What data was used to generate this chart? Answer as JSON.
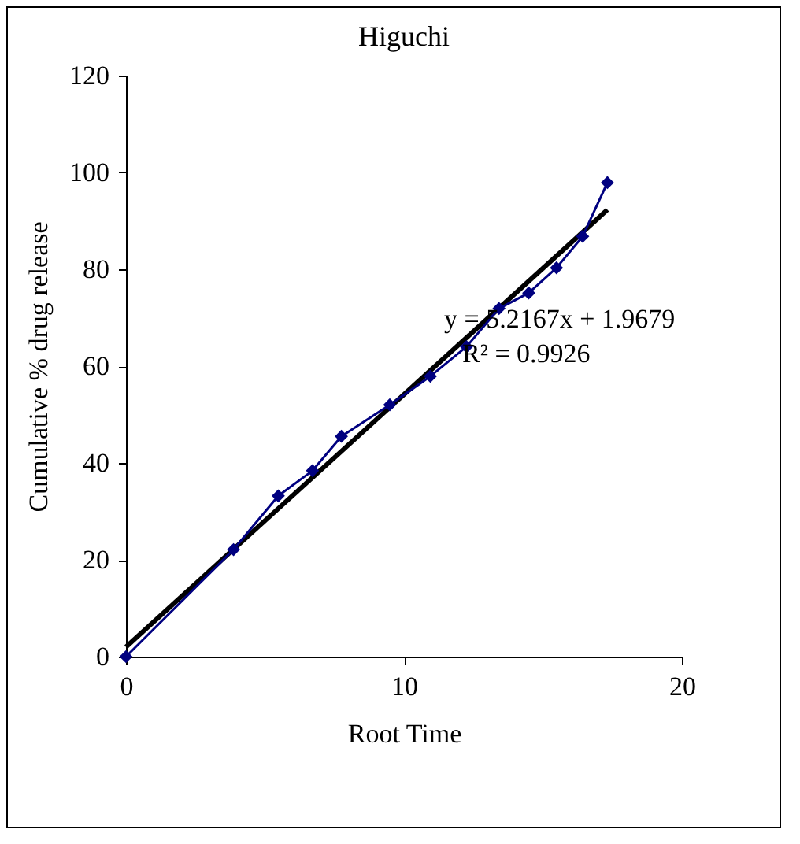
{
  "chart_data": {
    "type": "line",
    "title": "Higuchi",
    "xlabel": "Root Time",
    "ylabel": "Cumulative % drug release",
    "xlim": [
      0,
      20
    ],
    "xticks": [
      0,
      10,
      20
    ],
    "ylim": [
      0,
      120
    ],
    "yticks": [
      0,
      20,
      40,
      60,
      80,
      100,
      120
    ],
    "grid": false,
    "marker": "diamond",
    "line_style": "solid",
    "series": [
      {
        "color": "#000080",
        "x": [
          0,
          3.87,
          5.48,
          6.71,
          7.75,
          9.49,
          10.95,
          12.25,
          13.42,
          14.49,
          15.49,
          16.43,
          17.32
        ],
        "values": [
          0,
          22.1,
          33.2,
          38.4,
          45.5,
          52,
          57.9,
          64,
          71.9,
          75.1,
          80.3,
          86.8,
          97.9
        ]
      },
      {
        "color": "#000000",
        "marker": "none",
        "x": [
          0,
          17.32
        ],
        "values": [
          2.0,
          92.3
        ]
      }
    ],
    "annotations": [
      "y = 5.2167x + 1.9679",
      "R² = 0.9926"
    ]
  }
}
